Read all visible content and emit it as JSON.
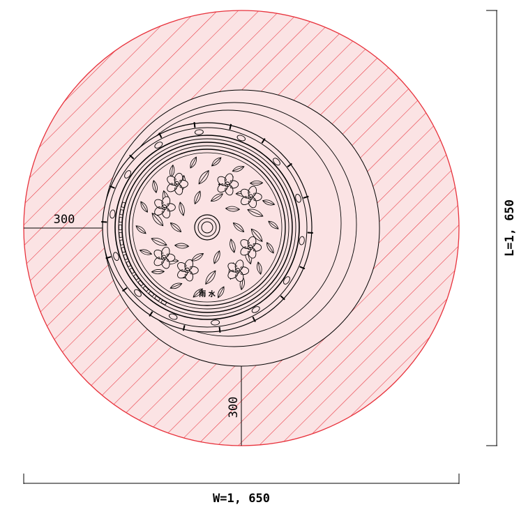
{
  "drawing": {
    "dimensions": {
      "width_label": "W=1, 650",
      "length_label": "L=1, 650",
      "offset_left": "300",
      "offset_bottom": "300"
    },
    "cover_marking": "雨 水",
    "colors": {
      "hatch": "#e8323c",
      "fill": "#fbe3e4",
      "ink": "#000000"
    },
    "elements": {
      "outer_zone": "hatched-circle",
      "cover": "ornamental-manhole-cover"
    }
  }
}
